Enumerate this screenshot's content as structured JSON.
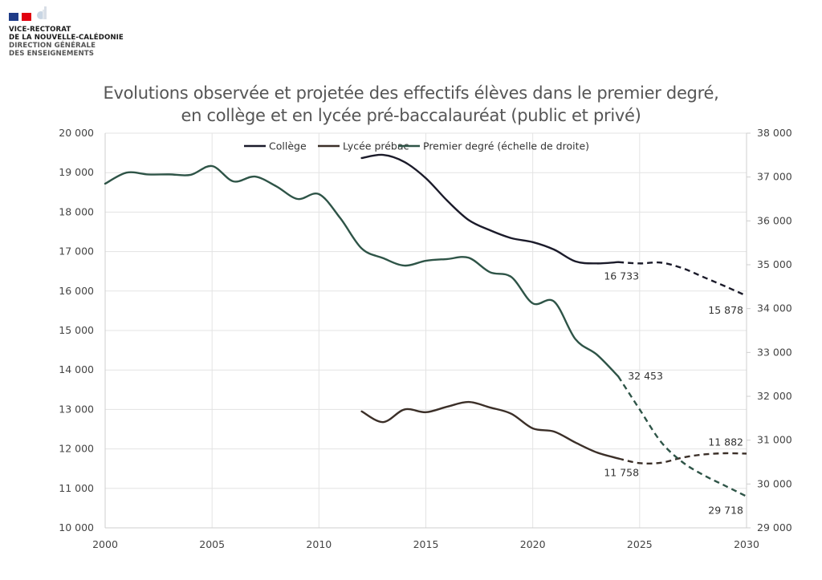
{
  "header": {
    "org_line1": "VICE-RECTORAT",
    "org_line2": "DE LA NOUVELLE-CALÉDONIE",
    "org_line3": "DIRECTION GÉNÉRALE",
    "org_line4": "DES ENSEIGNEMENTS",
    "logo_icons": [
      "french-flag-icon",
      "emblem-icon"
    ]
  },
  "chart_data": {
    "type": "line",
    "title_line1": "Evolutions observée et projetée des effectifs élèves dans le premier degré,",
    "title_line2": "en collège et en lycée pré-baccalauréat (public et privé)",
    "xlabel": "",
    "ylabel": "",
    "xlim": [
      2000,
      2030
    ],
    "x_ticks": [
      2000,
      2005,
      2010,
      2015,
      2020,
      2025,
      2030
    ],
    "x_tick_labels": [
      "2000",
      "2005",
      "2010",
      "2015",
      "2020",
      "2025",
      "2030"
    ],
    "ylim_left": [
      10000,
      20000
    ],
    "y_ticks_left": [
      "10 000",
      "11 000",
      "12 000",
      "13 000",
      "14 000",
      "15 000",
      "16 000",
      "17 000",
      "18 000",
      "19 000",
      "20 000"
    ],
    "ylim_right": [
      29000,
      38000
    ],
    "y_ticks_right": [
      "29 000",
      "30 000",
      "31 000",
      "32 000",
      "33 000",
      "34 000",
      "35 000",
      "36 000",
      "37 000",
      "38 000"
    ],
    "grid": true,
    "legend_position": "top-center",
    "series": [
      {
        "name": "Collège",
        "axis": "left",
        "color": "#1b1b2a",
        "observed": {
          "x": [
            2012,
            2013,
            2014,
            2015,
            2016,
            2017,
            2018,
            2019,
            2020,
            2021,
            2022,
            2023,
            2024
          ],
          "y": [
            19370,
            19450,
            19270,
            18860,
            18290,
            17800,
            17540,
            17340,
            17240,
            17050,
            16750,
            16700,
            16733
          ]
        },
        "projected": {
          "x": [
            2024,
            2025,
            2026,
            2027,
            2028,
            2029,
            2030
          ],
          "y": [
            16733,
            16700,
            16720,
            16580,
            16350,
            16120,
            15878
          ]
        },
        "labels": [
          {
            "x": 2024,
            "y": 16733,
            "text": "16 733",
            "pos": "below"
          },
          {
            "x": 2030,
            "y": 15878,
            "text": "15 878",
            "pos": "below-left"
          }
        ]
      },
      {
        "name": "Lycée prébac",
        "axis": "left",
        "color": "#3b2f28",
        "observed": {
          "x": [
            2012,
            2013,
            2014,
            2015,
            2016,
            2017,
            2018,
            2019,
            2020,
            2021,
            2022,
            2023,
            2024
          ],
          "y": [
            12950,
            12680,
            13000,
            12930,
            13070,
            13190,
            13050,
            12890,
            12520,
            12440,
            12160,
            11910,
            11758
          ]
        },
        "projected": {
          "x": [
            2024,
            2025,
            2026,
            2027,
            2028,
            2029,
            2030
          ],
          "y": [
            11758,
            11640,
            11650,
            11780,
            11860,
            11890,
            11882
          ]
        },
        "labels": [
          {
            "x": 2024,
            "y": 11758,
            "text": "11 758",
            "pos": "below"
          },
          {
            "x": 2030,
            "y": 11882,
            "text": "11 882",
            "pos": "above-left"
          }
        ]
      },
      {
        "name": "Premier degré (échelle de droite)",
        "axis": "right",
        "color": "#2e5447",
        "observed": {
          "x": [
            2000,
            2001,
            2002,
            2003,
            2004,
            2005,
            2006,
            2007,
            2008,
            2009,
            2010,
            2011,
            2012,
            2013,
            2014,
            2015,
            2016,
            2017,
            2018,
            2019,
            2020,
            2021,
            2022,
            2023,
            2024
          ],
          "y": [
            36848,
            37100,
            37060,
            37060,
            37050,
            37250,
            36900,
            37010,
            36790,
            36500,
            36610,
            36060,
            35370,
            35150,
            34980,
            35090,
            35130,
            35160,
            34830,
            34720,
            34120,
            34160,
            33300,
            32950,
            32453
          ]
        },
        "projected": {
          "x": [
            2024,
            2025,
            2026,
            2027,
            2028,
            2029,
            2030
          ],
          "y": [
            32453,
            31700,
            30960,
            30500,
            30200,
            29960,
            29718
          ]
        },
        "labels": [
          {
            "x": 2024,
            "y": 32453,
            "text": "32 453",
            "pos": "right"
          },
          {
            "x": 2030,
            "y": 29718,
            "text": "29 718",
            "pos": "below-left"
          }
        ]
      }
    ]
  }
}
